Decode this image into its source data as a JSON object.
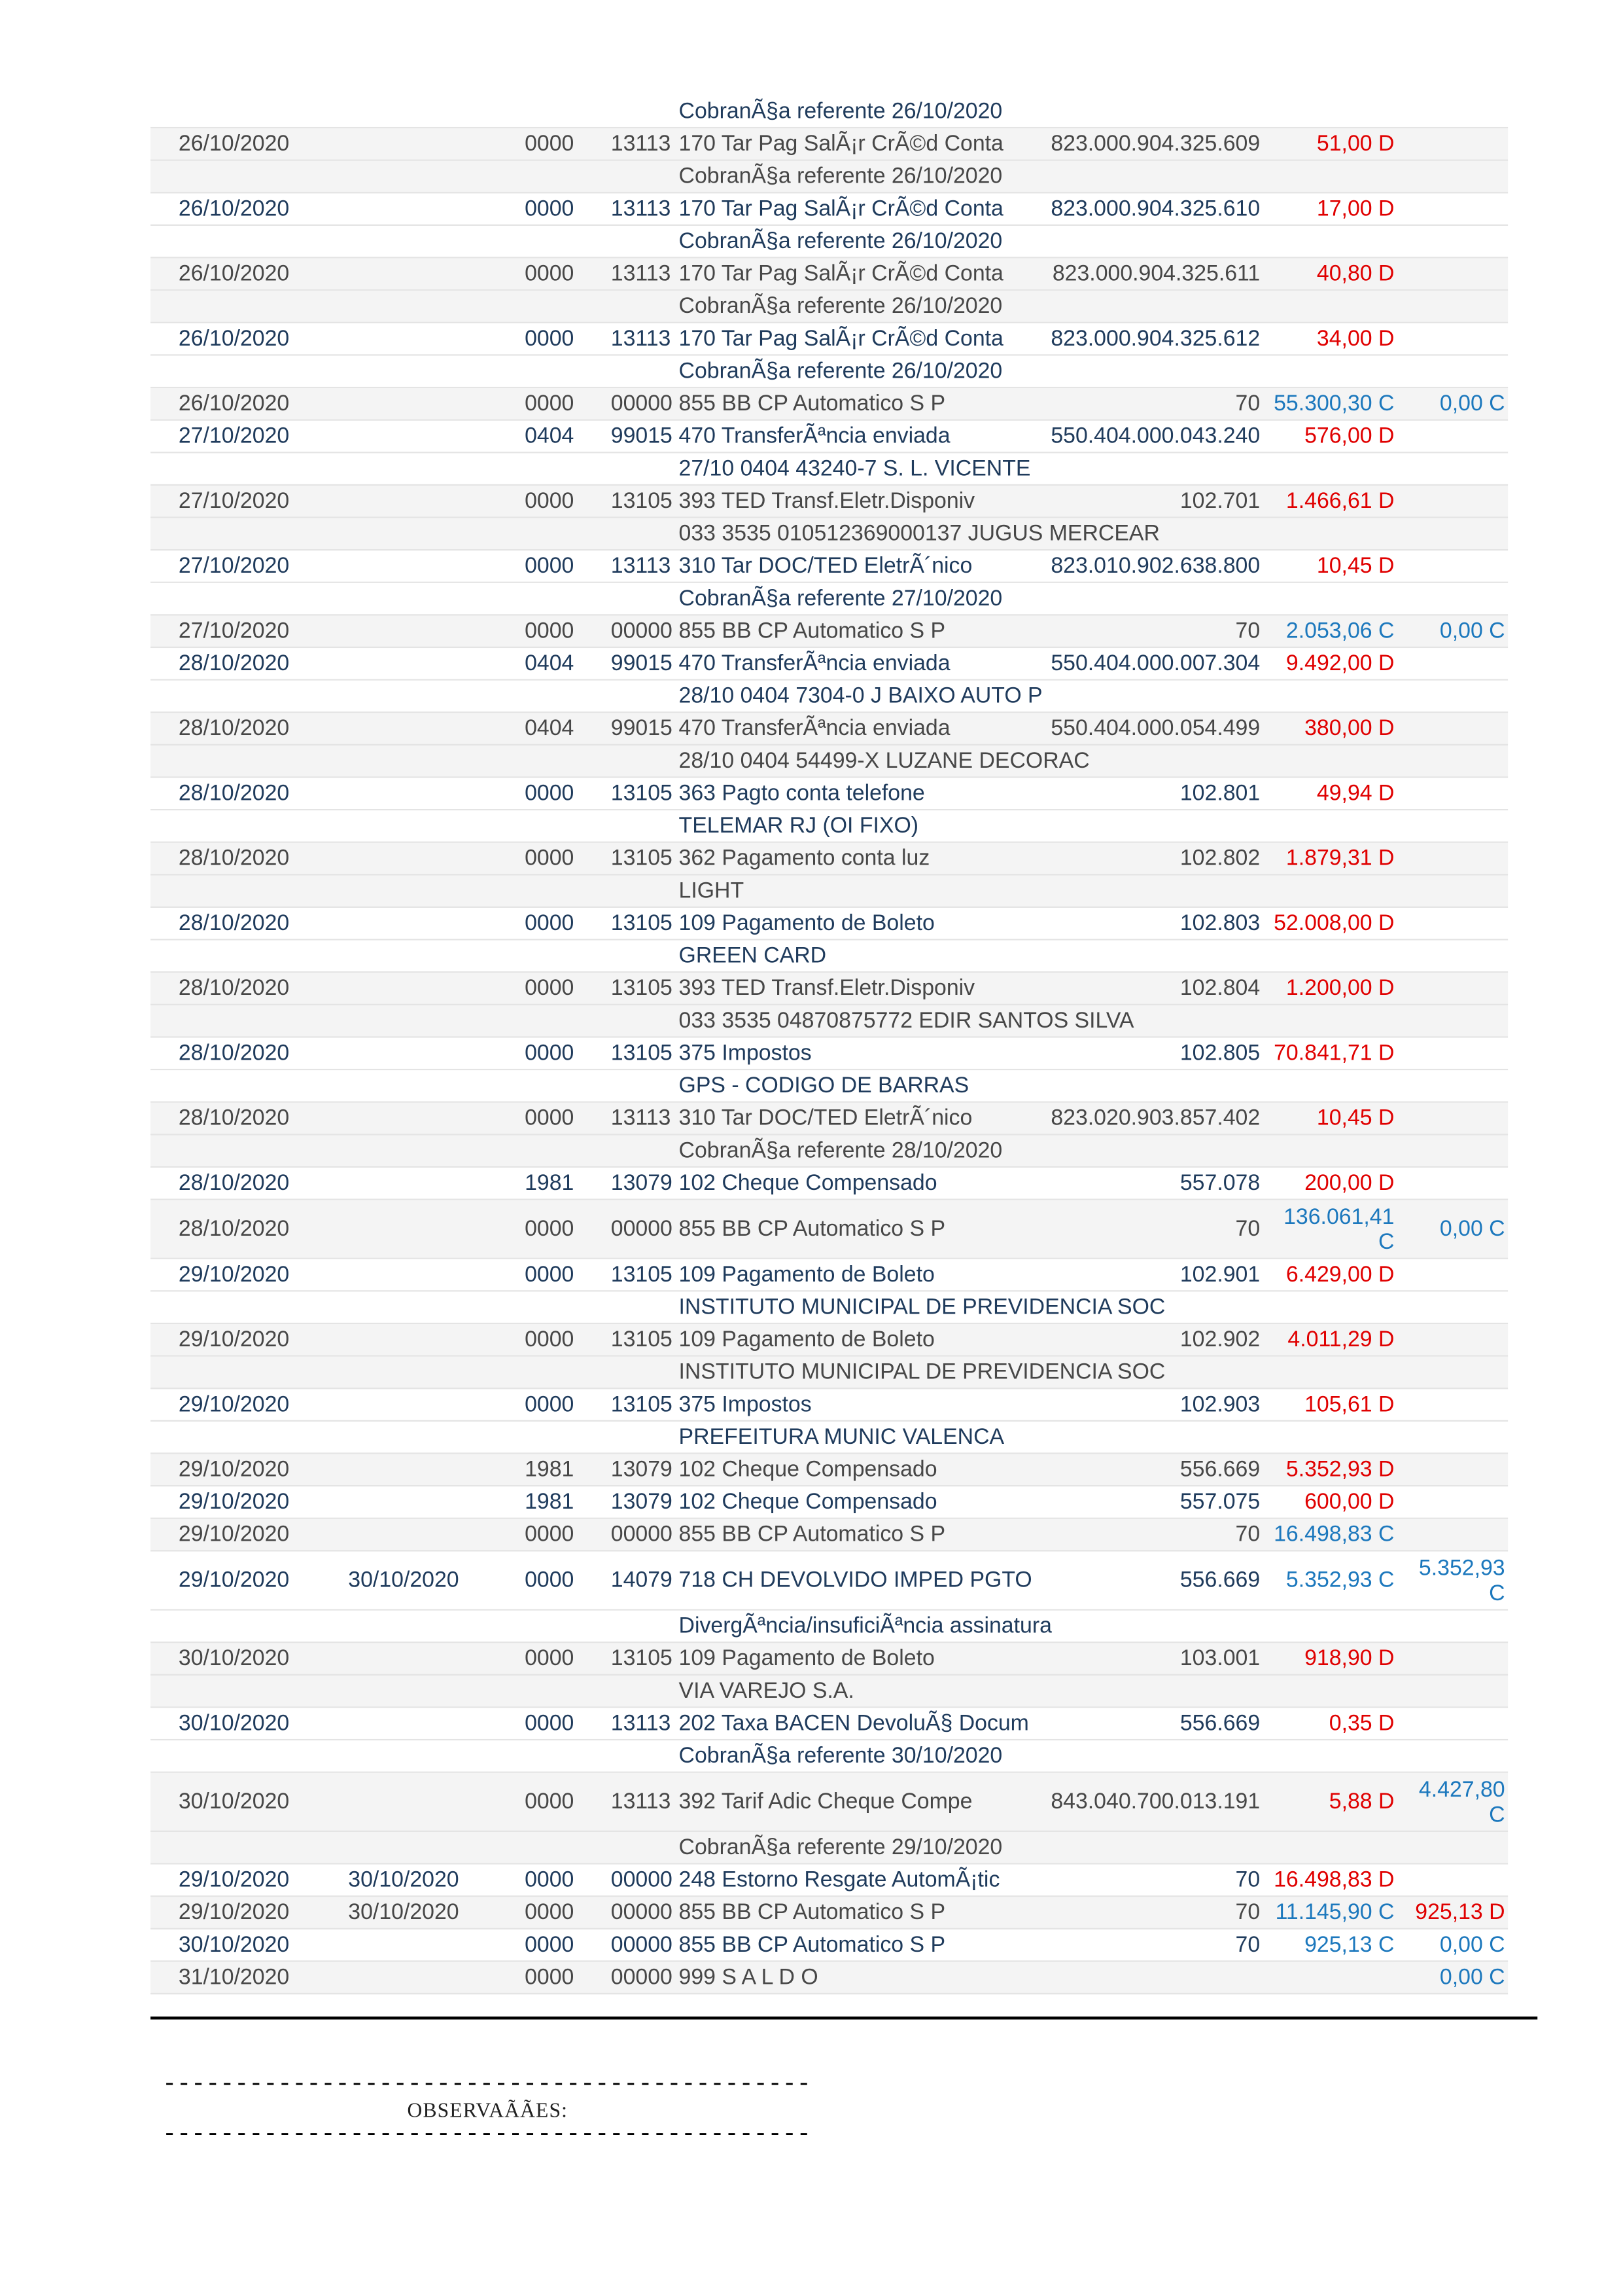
{
  "colors": {
    "debit": "#e00000",
    "credit": "#1c78bd",
    "text_grey": "#474747",
    "text_navy": "#1f3b5c",
    "stripe": "#f4f4f4"
  },
  "leading_description": "CobranÃ§a referente 26/10/2020",
  "records": [
    {
      "date": "26/10/2020",
      "date2": "",
      "agency": "0000",
      "lot": "13113",
      "history": "170 Tar Pag SalÃ¡r CrÃ©d Conta",
      "document": "823.000.904.325.609",
      "value": "51,00 D",
      "balance": "",
      "detail": "CobranÃ§a referente 26/10/2020"
    },
    {
      "date": "26/10/2020",
      "date2": "",
      "agency": "0000",
      "lot": "13113",
      "history": "170 Tar Pag SalÃ¡r CrÃ©d Conta",
      "document": "823.000.904.325.610",
      "value": "17,00 D",
      "balance": "",
      "detail": "CobranÃ§a referente 26/10/2020"
    },
    {
      "date": "26/10/2020",
      "date2": "",
      "agency": "0000",
      "lot": "13113",
      "history": "170 Tar Pag SalÃ¡r CrÃ©d Conta",
      "document": "823.000.904.325.611",
      "value": "40,80 D",
      "balance": "",
      "detail": "CobranÃ§a referente 26/10/2020"
    },
    {
      "date": "26/10/2020",
      "date2": "",
      "agency": "0000",
      "lot": "13113",
      "history": "170 Tar Pag SalÃ¡r CrÃ©d Conta",
      "document": "823.000.904.325.612",
      "value": "34,00 D",
      "balance": "",
      "detail": "CobranÃ§a referente 26/10/2020"
    },
    {
      "date": "26/10/2020",
      "date2": "",
      "agency": "0000",
      "lot": "00000",
      "history": "855 BB CP Automatico S P",
      "document": "70",
      "value": "55.300,30 C",
      "balance": "0,00 C",
      "detail": ""
    },
    {
      "date": "27/10/2020",
      "date2": "",
      "agency": "0404",
      "lot": "99015",
      "history": "470 TransferÃªncia enviada",
      "document": "550.404.000.043.240",
      "value": "576,00 D",
      "balance": "",
      "detail": "27/10 0404 43240-7 S. L. VICENTE"
    },
    {
      "date": "27/10/2020",
      "date2": "",
      "agency": "0000",
      "lot": "13105",
      "history": "393 TED Transf.Eletr.Disponiv",
      "document": "102.701",
      "value": "1.466,61 D",
      "balance": "",
      "detail": "033 3535 010512369000137 JUGUS MERCEAR"
    },
    {
      "date": "27/10/2020",
      "date2": "",
      "agency": "0000",
      "lot": "13113",
      "history": "310 Tar DOC/TED EletrÃ´nico",
      "document": "823.010.902.638.800",
      "value": "10,45 D",
      "balance": "",
      "detail": "CobranÃ§a referente 27/10/2020"
    },
    {
      "date": "27/10/2020",
      "date2": "",
      "agency": "0000",
      "lot": "00000",
      "history": "855 BB CP Automatico S P",
      "document": "70",
      "value": "2.053,06 C",
      "balance": "0,00 C",
      "detail": ""
    },
    {
      "date": "28/10/2020",
      "date2": "",
      "agency": "0404",
      "lot": "99015",
      "history": "470 TransferÃªncia enviada",
      "document": "550.404.000.007.304",
      "value": "9.492,00 D",
      "balance": "",
      "detail": "28/10 0404 7304-0 J BAIXO AUTO P"
    },
    {
      "date": "28/10/2020",
      "date2": "",
      "agency": "0404",
      "lot": "99015",
      "history": "470 TransferÃªncia enviada",
      "document": "550.404.000.054.499",
      "value": "380,00 D",
      "balance": "",
      "detail": "28/10 0404 54499-X LUZANE DECORAC"
    },
    {
      "date": "28/10/2020",
      "date2": "",
      "agency": "0000",
      "lot": "13105",
      "history": "363 Pagto conta telefone",
      "document": "102.801",
      "value": "49,94 D",
      "balance": "",
      "detail": "TELEMAR RJ (OI FIXO)"
    },
    {
      "date": "28/10/2020",
      "date2": "",
      "agency": "0000",
      "lot": "13105",
      "history": "362 Pagamento conta luz",
      "document": "102.802",
      "value": "1.879,31 D",
      "balance": "",
      "detail": "LIGHT"
    },
    {
      "date": "28/10/2020",
      "date2": "",
      "agency": "0000",
      "lot": "13105",
      "history": "109 Pagamento de Boleto",
      "document": "102.803",
      "value": "52.008,00 D",
      "balance": "",
      "detail": "GREEN CARD"
    },
    {
      "date": "28/10/2020",
      "date2": "",
      "agency": "0000",
      "lot": "13105",
      "history": "393 TED Transf.Eletr.Disponiv",
      "document": "102.804",
      "value": "1.200,00 D",
      "balance": "",
      "detail": "033 3535 04870875772 EDIR SANTOS SILVA"
    },
    {
      "date": "28/10/2020",
      "date2": "",
      "agency": "0000",
      "lot": "13105",
      "history": "375 Impostos",
      "document": "102.805",
      "value": "70.841,71 D",
      "balance": "",
      "detail": "GPS - CODIGO DE BARRAS"
    },
    {
      "date": "28/10/2020",
      "date2": "",
      "agency": "0000",
      "lot": "13113",
      "history": "310 Tar DOC/TED EletrÃ´nico",
      "document": "823.020.903.857.402",
      "value": "10,45 D",
      "balance": "",
      "detail": "CobranÃ§a referente 28/10/2020"
    },
    {
      "date": "28/10/2020",
      "date2": "",
      "agency": "1981",
      "lot": "13079",
      "history": "102 Cheque Compensado",
      "document": "557.078",
      "value": "200,00 D",
      "balance": "",
      "detail": ""
    },
    {
      "date": "28/10/2020",
      "date2": "",
      "agency": "0000",
      "lot": "00000",
      "history": "855 BB CP Automatico S P",
      "document": "70",
      "value": "136.061,41 C",
      "balance": "0,00 C",
      "detail": "",
      "tall": true
    },
    {
      "date": "29/10/2020",
      "date2": "",
      "agency": "0000",
      "lot": "13105",
      "history": "109 Pagamento de Boleto",
      "document": "102.901",
      "value": "6.429,00 D",
      "balance": "",
      "detail": "INSTITUTO MUNICIPAL DE PREVIDENCIA SOC"
    },
    {
      "date": "29/10/2020",
      "date2": "",
      "agency": "0000",
      "lot": "13105",
      "history": "109 Pagamento de Boleto",
      "document": "102.902",
      "value": "4.011,29 D",
      "balance": "",
      "detail": "INSTITUTO MUNICIPAL DE PREVIDENCIA SOC"
    },
    {
      "date": "29/10/2020",
      "date2": "",
      "agency": "0000",
      "lot": "13105",
      "history": "375 Impostos",
      "document": "102.903",
      "value": "105,61 D",
      "balance": "",
      "detail": "PREFEITURA MUNIC VALENCA"
    },
    {
      "date": "29/10/2020",
      "date2": "",
      "agency": "1981",
      "lot": "13079",
      "history": "102 Cheque Compensado",
      "document": "556.669",
      "value": "5.352,93 D",
      "balance": "",
      "detail": ""
    },
    {
      "date": "29/10/2020",
      "date2": "",
      "agency": "1981",
      "lot": "13079",
      "history": "102 Cheque Compensado",
      "document": "557.075",
      "value": "600,00 D",
      "balance": "",
      "detail": ""
    },
    {
      "date": "29/10/2020",
      "date2": "",
      "agency": "0000",
      "lot": "00000",
      "history": "855 BB CP Automatico S P",
      "document": "70",
      "value": "16.498,83 C",
      "balance": "",
      "detail": ""
    },
    {
      "date": "29/10/2020",
      "date2": "30/10/2020",
      "agency": "0000",
      "lot": "14079",
      "history": "718 CH DEVOLVIDO IMPED PGTO",
      "document": "556.669",
      "value": "5.352,93 C",
      "balance": "5.352,93 C",
      "detail": "DivergÃªncia/insuficiÃªncia assinatura",
      "tall": true
    },
    {
      "date": "30/10/2020",
      "date2": "",
      "agency": "0000",
      "lot": "13105",
      "history": "109 Pagamento de Boleto",
      "document": "103.001",
      "value": "918,90 D",
      "balance": "",
      "detail": "VIA VAREJO S.A."
    },
    {
      "date": "30/10/2020",
      "date2": "",
      "agency": "0000",
      "lot": "13113",
      "history": "202 Taxa BACEN DevoluÃ§ Docum",
      "document": "556.669",
      "value": "0,35 D",
      "balance": "",
      "detail": "CobranÃ§a referente 30/10/2020"
    },
    {
      "date": "30/10/2020",
      "date2": "",
      "agency": "0000",
      "lot": "13113",
      "history": "392 Tarif Adic Cheque Compe",
      "document": "843.040.700.013.191",
      "value": "5,88 D",
      "balance": "4.427,80 C",
      "detail": "CobranÃ§a referente 29/10/2020",
      "tall": true
    },
    {
      "date": "29/10/2020",
      "date2": "30/10/2020",
      "agency": "0000",
      "lot": "00000",
      "history": "248 Estorno Resgate AutomÃ¡tic",
      "document": "70",
      "value": "16.498,83 D",
      "balance": "",
      "detail": ""
    },
    {
      "date": "29/10/2020",
      "date2": "30/10/2020",
      "agency": "0000",
      "lot": "00000",
      "history": "855 BB CP Automatico S P",
      "document": "70",
      "value": "11.145,90 C",
      "balance": "925,13 D",
      "detail": ""
    },
    {
      "date": "30/10/2020",
      "date2": "",
      "agency": "0000",
      "lot": "00000",
      "history": "855 BB CP Automatico S P",
      "document": "70",
      "value": "925,13 C",
      "balance": "0,00 C",
      "detail": ""
    },
    {
      "date": "31/10/2020",
      "date2": "",
      "agency": "0000",
      "lot": "00000",
      "history": "999 S A L D O",
      "document": "",
      "value": "",
      "balance": "0,00 C",
      "detail": ""
    }
  ],
  "footer": {
    "dashes": "---------------------------------------------",
    "observations_label": "OBSERVAÃÃES:"
  }
}
